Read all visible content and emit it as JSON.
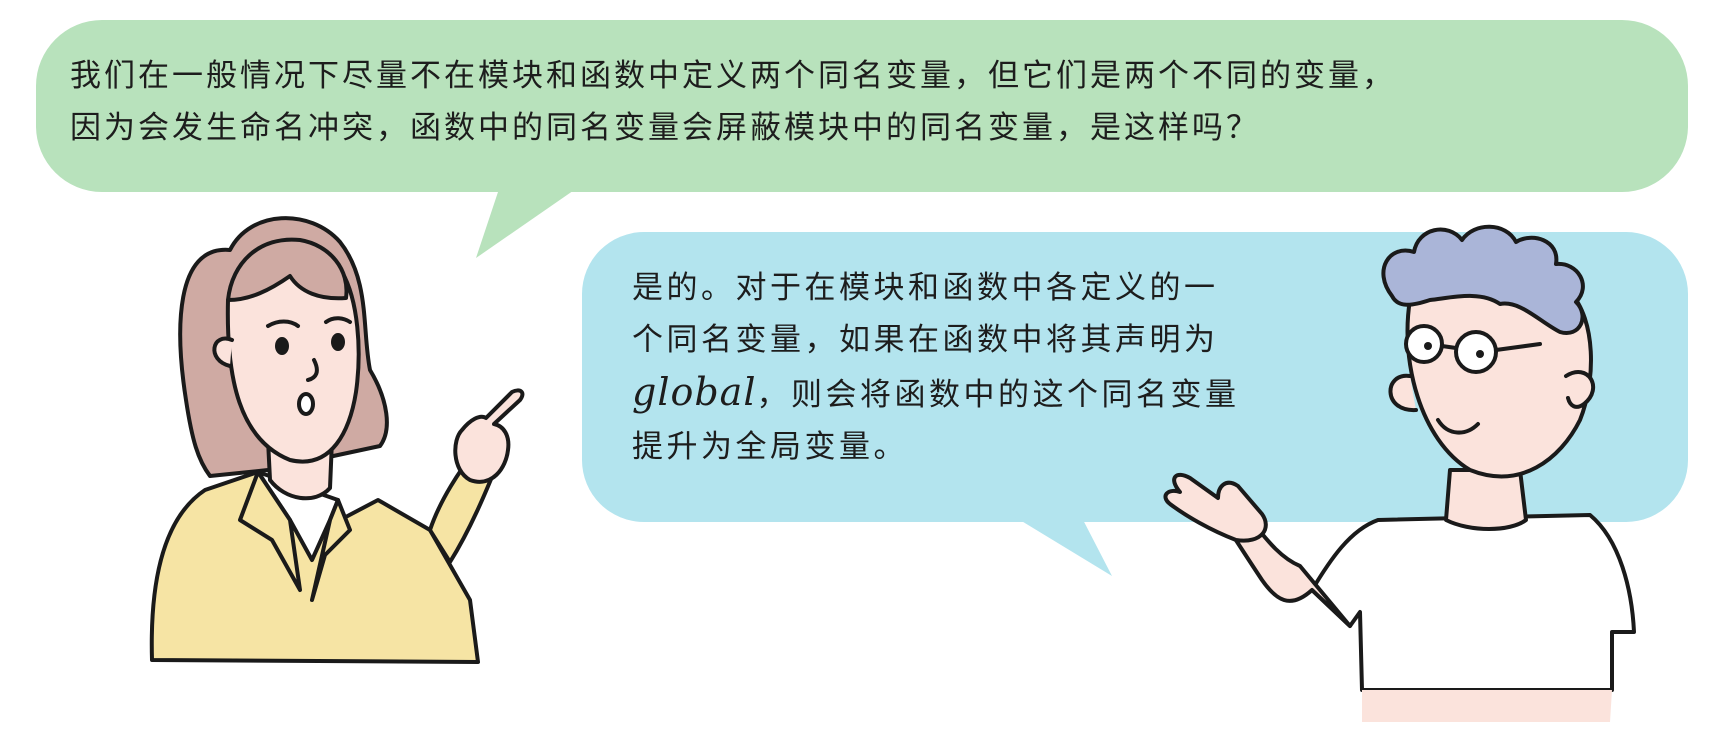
{
  "colors": {
    "question_bubble": "#b8e2bc",
    "answer_bubble": "#b3e4ee",
    "outline": "#1a1a1a",
    "woman_hair": "#cfaaa3",
    "woman_jacket": "#f6e4a4",
    "skin": "#fbe3dc",
    "man_hair": "#aab5d8"
  },
  "question": {
    "line1": "我们在一般情况下尽量不在模块和函数中定义两个同名变量，但它们是两个不同的变量，",
    "line2": "因为会发生命名冲突，函数中的同名变量会屏蔽模块中的同名变量，是这样吗？"
  },
  "answer": {
    "line1": "是的。对于在模块和函数中各定义的一",
    "line2": "个同名变量，如果在函数中将其声明为",
    "line3_keyword": "global",
    "line3_rest": "，则会将函数中的这个同名变量",
    "line4": "提升为全局变量。"
  },
  "characters": {
    "left_icon": "woman-pointing-icon",
    "right_icon": "man-gesturing-icon"
  }
}
